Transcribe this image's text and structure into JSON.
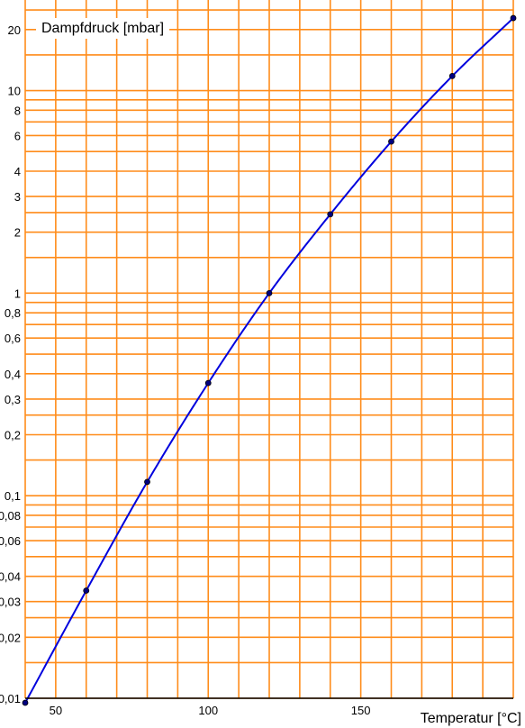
{
  "chart_data": {
    "type": "line",
    "ylabel": "Dampfdruck [mbar]",
    "xlabel": "Temperatur [°C]",
    "xlim": [
      40,
      200
    ],
    "ylim": [
      0.01,
      28
    ],
    "yscale": "log",
    "x_ticks": [
      {
        "value": 50,
        "label": "50"
      },
      {
        "value": 100,
        "label": "100"
      },
      {
        "value": 150,
        "label": "150"
      }
    ],
    "y_ticks": [
      {
        "value": 0.01,
        "label": "0,01"
      },
      {
        "value": 0.02,
        "label": "0,02"
      },
      {
        "value": 0.03,
        "label": "0,03"
      },
      {
        "value": 0.04,
        "label": "0,04"
      },
      {
        "value": 0.06,
        "label": "0,06"
      },
      {
        "value": 0.08,
        "label": "0,08"
      },
      {
        "value": 0.1,
        "label": "0,1"
      },
      {
        "value": 0.2,
        "label": "0,2"
      },
      {
        "value": 0.3,
        "label": "0,3"
      },
      {
        "value": 0.4,
        "label": "0,4"
      },
      {
        "value": 0.6,
        "label": "0,6"
      },
      {
        "value": 0.8,
        "label": "0,8"
      },
      {
        "value": 1,
        "label": "1"
      },
      {
        "value": 2,
        "label": "2"
      },
      {
        "value": 3,
        "label": "3"
      },
      {
        "value": 4,
        "label": "4"
      },
      {
        "value": 6,
        "label": "6"
      },
      {
        "value": 8,
        "label": "8"
      },
      {
        "value": 10,
        "label": "10"
      },
      {
        "value": 20,
        "label": "20"
      }
    ],
    "x_grid_step": 10,
    "y_grid_minor": [
      1,
      1.5,
      2,
      2.5,
      3,
      4,
      5,
      6,
      7,
      8,
      9
    ],
    "grid": true,
    "series": [
      {
        "x": [
          40,
          60,
          80,
          100,
          120,
          140,
          160,
          180,
          200
        ],
        "y": [
          0.0095,
          0.034,
          0.117,
          0.36,
          1.0,
          2.45,
          5.6,
          11.8,
          22.8
        ]
      }
    ],
    "colors": {
      "grid": "#ff8c1a",
      "line": "#0000dd",
      "marker": "#000080",
      "axis": "#000000"
    }
  }
}
